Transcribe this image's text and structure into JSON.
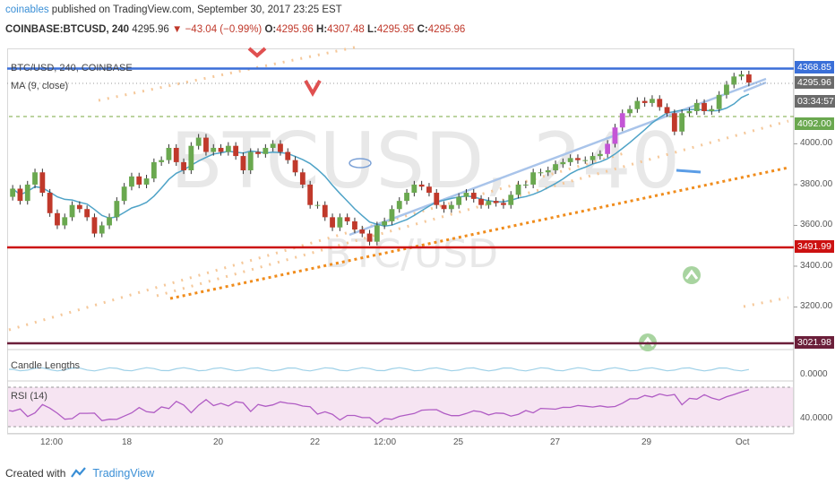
{
  "header": {
    "author": "coinables",
    "published": "published on TradingView.com, September 30, 2017 23:25 EST",
    "symbol": "COINBASE:BTCUSD, 240",
    "last": "4295.96",
    "change": "▼ −43.04 (−0.99%)",
    "o_label": "O:",
    "o": "4295.96",
    "h_label": "H:",
    "h": "4307.48",
    "l_label": "L:",
    "l": "4295.95",
    "c_label": "C:",
    "c": "4295.96"
  },
  "legend": {
    "symbol": "BTC/USD, 240, COINBASE",
    "ma": "MA (9, close)"
  },
  "watermark": {
    "big": "BTCUSD, 240",
    "small": "BTC/USD"
  },
  "price_tags": [
    {
      "text": "4368.85",
      "color": "#3a6fd8"
    },
    {
      "text": "4295.96",
      "color": "#6b6b6b"
    },
    {
      "text": "03:34:57",
      "color": "#6b6b6b"
    },
    {
      "text": "4092.00",
      "color": "#6aa84f"
    },
    {
      "text": "3491.99",
      "color": "#cc1111"
    },
    {
      "text": "3021.98",
      "color": "#6b1f3a"
    }
  ],
  "indicators": {
    "candle_lengths": "Candle Lengths",
    "candle_lengths_value": "0.0000",
    "rsi": "RSI (14)",
    "rsi_value": "40.0000"
  },
  "footer": {
    "created": "Created with",
    "brand": "TradingView"
  },
  "chart_data": {
    "type": "candlestick",
    "title": "BTC/USD, 240, COINBASE",
    "y_ticks": [
      3200,
      3400,
      3600,
      3800,
      4000
    ],
    "ylim": [
      3000,
      4450
    ],
    "x_ticks": [
      "12:00",
      "18",
      "20",
      "22",
      "12:00",
      "25",
      "27",
      "29",
      "Oct"
    ],
    "horizontal_levels": [
      {
        "value": 4368.85,
        "color": "#3a6fd8"
      },
      {
        "value": 3491.99,
        "color": "#cc1111"
      },
      {
        "value": 3021.98,
        "color": "#6b1f3a"
      }
    ],
    "close_series": [
      3780,
      3720,
      3800,
      3860,
      3760,
      3660,
      3600,
      3640,
      3700,
      3680,
      3640,
      3560,
      3600,
      3640,
      3720,
      3790,
      3840,
      3800,
      3830,
      3910,
      3920,
      3980,
      3910,
      3870,
      3990,
      4030,
      3960,
      3980,
      3960,
      3990,
      3940,
      3870,
      3960,
      3950,
      3980,
      4000,
      3960,
      3920,
      3860,
      3800,
      3700,
      3700,
      3640,
      3590,
      3640,
      3620,
      3580,
      3560,
      3520,
      3600,
      3620,
      3680,
      3720,
      3760,
      3800,
      3790,
      3760,
      3700,
      3680,
      3700,
      3740,
      3760,
      3730,
      3700,
      3720,
      3710,
      3700,
      3750,
      3800,
      3800,
      3860,
      3860,
      3870,
      3900,
      3910,
      3930,
      3920,
      3920,
      3940,
      3950,
      4000,
      4080,
      4150,
      4170,
      4210,
      4200,
      4220,
      4180,
      4150,
      4060,
      4150,
      4160,
      4200,
      4160,
      4170,
      4240,
      4290,
      4330,
      4340,
      4300
    ]
  }
}
